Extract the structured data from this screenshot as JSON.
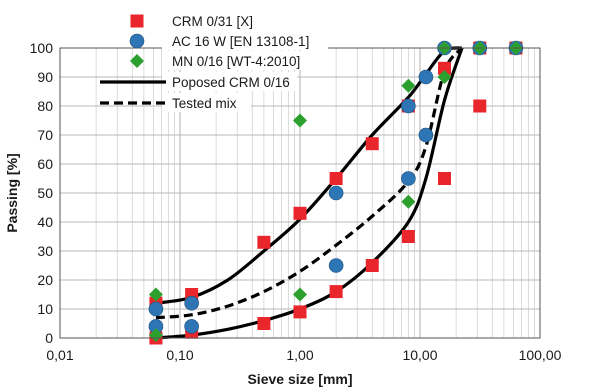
{
  "chart_data": {
    "type": "scatter",
    "x_scale": "log",
    "xlabel": "Sieve size [mm]",
    "ylabel": "Passing [%]",
    "xlim": [
      0.01,
      100
    ],
    "ylim": [
      0,
      100
    ],
    "x_ticks": [
      0.01,
      0.1,
      1,
      10,
      100
    ],
    "x_tick_labels": [
      "0,01",
      "0,10",
      "1,00",
      "10,00",
      "100,00"
    ],
    "y_ticks": [
      0,
      10,
      20,
      30,
      40,
      50,
      60,
      70,
      80,
      90,
      100
    ],
    "y_tick_labels": [
      "0",
      "10",
      "20",
      "30",
      "40",
      "50",
      "60",
      "70",
      "80",
      "90",
      "100"
    ],
    "grid": true,
    "legend_position": "top-left",
    "series": [
      {
        "name": "CRM 0/31 [X]",
        "kind": "points",
        "marker": "square",
        "color": "#e8262b",
        "points": [
          {
            "x": 0.063,
            "y": 0
          },
          {
            "x": 0.063,
            "y": 12
          },
          {
            "x": 0.125,
            "y": 2
          },
          {
            "x": 0.125,
            "y": 15
          },
          {
            "x": 0.5,
            "y": 5
          },
          {
            "x": 0.5,
            "y": 33
          },
          {
            "x": 1,
            "y": 9
          },
          {
            "x": 1,
            "y": 43
          },
          {
            "x": 2,
            "y": 16
          },
          {
            "x": 2,
            "y": 55
          },
          {
            "x": 4,
            "y": 25
          },
          {
            "x": 4,
            "y": 67
          },
          {
            "x": 8,
            "y": 35
          },
          {
            "x": 8,
            "y": 80
          },
          {
            "x": 16,
            "y": 55
          },
          {
            "x": 16,
            "y": 93
          },
          {
            "x": 31.5,
            "y": 80
          },
          {
            "x": 31.5,
            "y": 100
          },
          {
            "x": 63,
            "y": 100
          }
        ]
      },
      {
        "name": "AC 16 W [EN 13108-1]",
        "kind": "points",
        "marker": "circle",
        "color": "#2e75b6",
        "points": [
          {
            "x": 0.063,
            "y": 4
          },
          {
            "x": 0.063,
            "y": 10
          },
          {
            "x": 0.125,
            "y": 4
          },
          {
            "x": 0.125,
            "y": 12
          },
          {
            "x": 2,
            "y": 25
          },
          {
            "x": 2,
            "y": 50
          },
          {
            "x": 8,
            "y": 55
          },
          {
            "x": 8,
            "y": 80
          },
          {
            "x": 11.2,
            "y": 70
          },
          {
            "x": 11.2,
            "y": 90
          },
          {
            "x": 16,
            "y": 100
          },
          {
            "x": 31.5,
            "y": 100
          },
          {
            "x": 63,
            "y": 100
          }
        ]
      },
      {
        "name": "MN 0/16 [WT-4:2010]",
        "kind": "points",
        "marker": "diamond",
        "color": "#2ca02c",
        "points": [
          {
            "x": 0.063,
            "y": 1
          },
          {
            "x": 0.063,
            "y": 15
          },
          {
            "x": 1,
            "y": 15
          },
          {
            "x": 1,
            "y": 75
          },
          {
            "x": 8,
            "y": 47
          },
          {
            "x": 8,
            "y": 87
          },
          {
            "x": 16,
            "y": 90
          },
          {
            "x": 16,
            "y": 100
          },
          {
            "x": 31.5,
            "y": 100
          },
          {
            "x": 63,
            "y": 100
          }
        ]
      },
      {
        "name": "Poposed CRM 0/16",
        "kind": "band",
        "line_style": "solid",
        "color": "#000000",
        "upper": [
          {
            "x": 0.063,
            "y": 12
          },
          {
            "x": 0.125,
            "y": 14
          },
          {
            "x": 0.25,
            "y": 20
          },
          {
            "x": 0.5,
            "y": 30
          },
          {
            "x": 1,
            "y": 41
          },
          {
            "x": 2,
            "y": 55
          },
          {
            "x": 4,
            "y": 70
          },
          {
            "x": 8,
            "y": 83
          },
          {
            "x": 11.2,
            "y": 91
          },
          {
            "x": 16,
            "y": 99
          },
          {
            "x": 22.4,
            "y": 100
          }
        ],
        "lower": [
          {
            "x": 0.063,
            "y": 0
          },
          {
            "x": 0.125,
            "y": 1
          },
          {
            "x": 0.25,
            "y": 3
          },
          {
            "x": 0.5,
            "y": 6
          },
          {
            "x": 1,
            "y": 10
          },
          {
            "x": 2,
            "y": 16
          },
          {
            "x": 4,
            "y": 26
          },
          {
            "x": 8,
            "y": 40
          },
          {
            "x": 11.2,
            "y": 55
          },
          {
            "x": 16,
            "y": 82
          },
          {
            "x": 22.4,
            "y": 100
          }
        ]
      },
      {
        "name": "Tested mix",
        "kind": "line",
        "line_style": "dashed",
        "color": "#000000",
        "points": [
          {
            "x": 0.063,
            "y": 7
          },
          {
            "x": 0.125,
            "y": 8
          },
          {
            "x": 0.25,
            "y": 11
          },
          {
            "x": 0.5,
            "y": 16
          },
          {
            "x": 1,
            "y": 23
          },
          {
            "x": 2,
            "y": 32
          },
          {
            "x": 4,
            "y": 42
          },
          {
            "x": 8,
            "y": 54
          },
          {
            "x": 11.2,
            "y": 66
          },
          {
            "x": 16,
            "y": 92
          },
          {
            "x": 22.4,
            "y": 100
          }
        ]
      }
    ]
  }
}
